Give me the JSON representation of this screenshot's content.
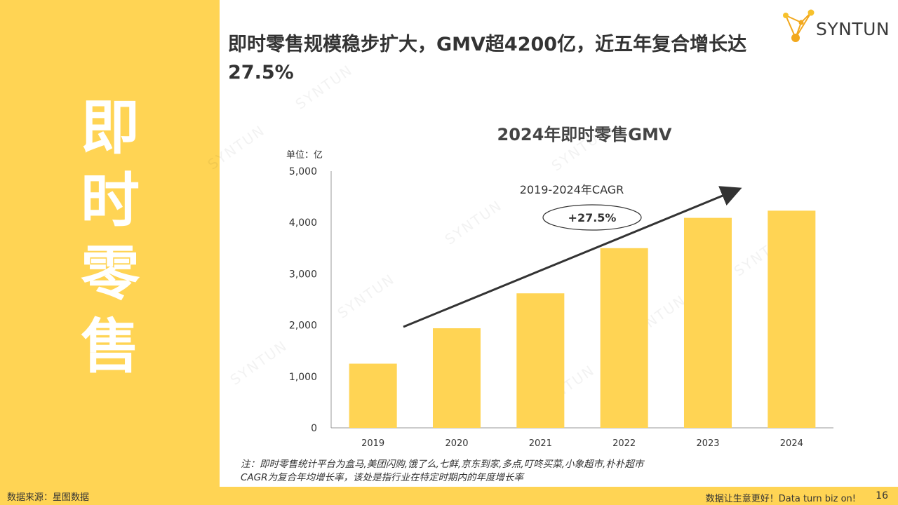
{
  "side": {
    "title_chars": [
      "即",
      "时",
      "零",
      "售"
    ]
  },
  "headline": "即时零售规模稳步扩大，GMV超4200亿，近五年复合增长达27.5%",
  "logo": {
    "name": "SYNTUN",
    "icon": "network-nodes-icon"
  },
  "watermark": "SYNTUN",
  "chart_data": {
    "type": "bar",
    "title": "2024年即时零售GMV",
    "unit_label": "单位：亿",
    "categories": [
      "2019",
      "2020",
      "2021",
      "2022",
      "2023",
      "2024"
    ],
    "values": [
      1250,
      1940,
      2620,
      3500,
      4090,
      4230
    ],
    "ylim": [
      0,
      5000
    ],
    "yticks": [
      0,
      1000,
      2000,
      3000,
      4000,
      5000
    ],
    "ytick_labels": [
      "0",
      "1,000",
      "2,000",
      "3,000",
      "4,000",
      "5,000"
    ],
    "annotation": {
      "label": "2019-2024年CAGR",
      "value": "+27.5%"
    },
    "bar_color": "#ffd454"
  },
  "notes": [
    "注：即时零售统计平台为盒马,美团闪购,饿了么,七鲜,京东到家,多点,叮咚买菜,小象超市,朴朴超市",
    "CAGR为复合年均增长率，该处是指行业在特定时期内的年度增长率"
  ],
  "footer": {
    "source": "数据来源：星图数据",
    "slogan": "数据让生意更好！Data turn biz on!",
    "page": "16"
  },
  "colors": {
    "accent": "#ffd454",
    "text": "#333333"
  }
}
